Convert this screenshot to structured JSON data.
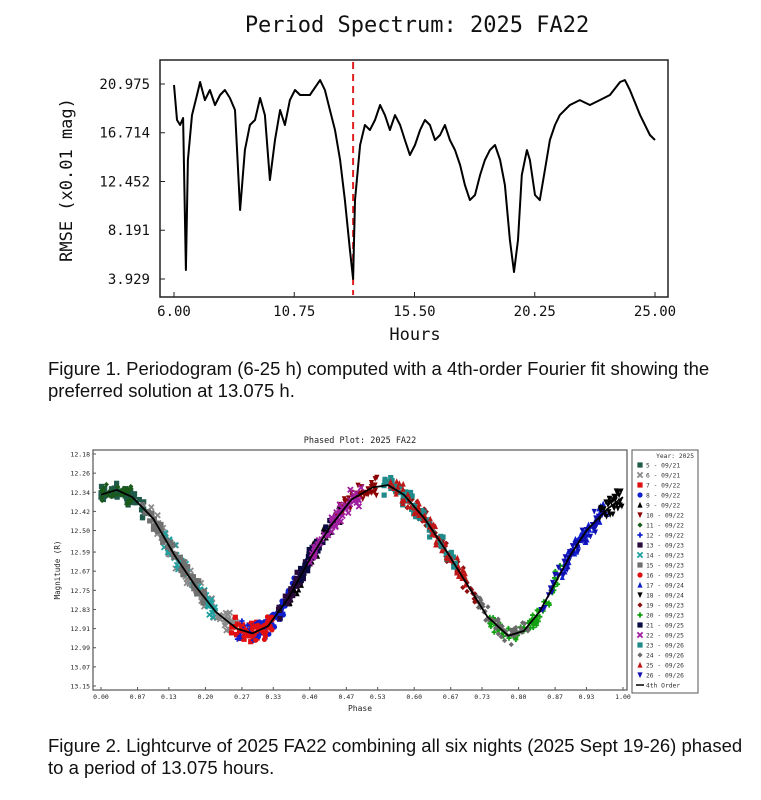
{
  "chart_data": [
    {
      "type": "line",
      "title": "Period Spectrum: 2025 FA22",
      "xlabel": "Hours",
      "ylabel": "RMSE (x0.01 mag)",
      "xlim": [
        6.0,
        25.0
      ],
      "ylim": [
        3.929,
        20.975
      ],
      "xticks": [
        "6.00",
        "10.75",
        "15.50",
        "20.25",
        "25.00"
      ],
      "yticks": [
        "20.975",
        "16.714",
        "12.452",
        "8.191",
        "3.929"
      ],
      "marker_period": 13.075,
      "marker_color": "#e02020",
      "line_color": "#000000",
      "series": [
        {
          "name": "RMSE",
          "points": [
            [
              6.0,
              20.89
            ],
            [
              6.12,
              17.83
            ],
            [
              6.24,
              17.39
            ],
            [
              6.36,
              18.0
            ],
            [
              6.47,
              4.72
            ],
            [
              6.55,
              14.33
            ],
            [
              6.71,
              18.26
            ],
            [
              6.91,
              20.01
            ],
            [
              7.03,
              21.15
            ],
            [
              7.22,
              19.57
            ],
            [
              7.42,
              20.45
            ],
            [
              7.62,
              19.14
            ],
            [
              7.82,
              20.01
            ],
            [
              8.01,
              20.45
            ],
            [
              8.21,
              19.75
            ],
            [
              8.41,
              18.7
            ],
            [
              8.61,
              9.96
            ],
            [
              8.8,
              15.2
            ],
            [
              9.0,
              17.39
            ],
            [
              9.2,
              17.83
            ],
            [
              9.4,
              19.75
            ],
            [
              9.59,
              18.26
            ],
            [
              9.79,
              12.58
            ],
            [
              9.99,
              16.08
            ],
            [
              10.19,
              18.7
            ],
            [
              10.38,
              17.39
            ],
            [
              10.58,
              19.57
            ],
            [
              10.78,
              20.45
            ],
            [
              10.98,
              20.01
            ],
            [
              11.37,
              20.01
            ],
            [
              11.77,
              21.32
            ],
            [
              11.96,
              20.45
            ],
            [
              12.16,
              18.7
            ],
            [
              12.36,
              16.95
            ],
            [
              12.56,
              14.33
            ],
            [
              12.75,
              10.83
            ],
            [
              12.95,
              6.5
            ],
            [
              13.075,
              3.93
            ],
            [
              13.15,
              10.83
            ],
            [
              13.35,
              15.64
            ],
            [
              13.54,
              17.39
            ],
            [
              13.74,
              16.95
            ],
            [
              13.94,
              17.83
            ],
            [
              14.14,
              19.14
            ],
            [
              14.33,
              18.26
            ],
            [
              14.53,
              16.95
            ],
            [
              14.73,
              18.26
            ],
            [
              14.93,
              17.39
            ],
            [
              15.12,
              16.08
            ],
            [
              15.32,
              14.77
            ],
            [
              15.52,
              15.64
            ],
            [
              15.72,
              16.95
            ],
            [
              15.91,
              17.83
            ],
            [
              16.11,
              17.39
            ],
            [
              16.31,
              16.08
            ],
            [
              16.51,
              16.52
            ],
            [
              16.7,
              17.39
            ],
            [
              16.9,
              16.08
            ],
            [
              17.1,
              15.2
            ],
            [
              17.3,
              13.89
            ],
            [
              17.49,
              12.15
            ],
            [
              17.69,
              10.83
            ],
            [
              17.89,
              11.27
            ],
            [
              18.09,
              13.02
            ],
            [
              18.28,
              14.33
            ],
            [
              18.48,
              15.2
            ],
            [
              18.68,
              15.64
            ],
            [
              18.88,
              14.33
            ],
            [
              19.07,
              12.15
            ],
            [
              19.27,
              7.34
            ],
            [
              19.43,
              4.54
            ],
            [
              19.59,
              7.34
            ],
            [
              19.74,
              13.02
            ],
            [
              19.94,
              15.2
            ],
            [
              20.06,
              14.33
            ],
            [
              20.26,
              11.27
            ],
            [
              20.45,
              10.83
            ],
            [
              20.65,
              13.46
            ],
            [
              20.85,
              16.08
            ],
            [
              21.05,
              17.39
            ],
            [
              21.24,
              18.26
            ],
            [
              21.64,
              19.14
            ],
            [
              22.03,
              19.57
            ],
            [
              22.43,
              19.14
            ],
            [
              22.82,
              19.57
            ],
            [
              23.22,
              20.01
            ],
            [
              23.62,
              21.15
            ],
            [
              23.81,
              21.32
            ],
            [
              24.01,
              20.45
            ],
            [
              24.41,
              18.26
            ],
            [
              24.8,
              16.52
            ],
            [
              25.0,
              16.08
            ]
          ]
        }
      ]
    },
    {
      "type": "scatter",
      "title": "Phased Plot: 2025 FA22",
      "xlabel": "Phase",
      "ylabel": "Magnitude (R)",
      "xlim": [
        0.0,
        1.0
      ],
      "ylim": [
        12.18,
        13.15
      ],
      "y_inverted": true,
      "xticks": [
        "0.00",
        "0.07",
        "0.13",
        "0.20",
        "0.27",
        "0.33",
        "0.40",
        "0.47",
        "0.53",
        "0.60",
        "0.67",
        "0.73",
        "0.80",
        "0.87",
        "0.93",
        "1.00"
      ],
      "yticks": [
        "12.18",
        "12.26",
        "12.34",
        "12.42",
        "12.50",
        "12.59",
        "12.67",
        "12.75",
        "12.83",
        "12.91",
        "12.99",
        "13.07",
        "13.15"
      ],
      "legend_title": "Year: 2025",
      "legend_position": "right",
      "fit": {
        "name": "4th Order",
        "color": "#000000",
        "points": [
          [
            0.0,
            12.35
          ],
          [
            0.03,
            12.33
          ],
          [
            0.06,
            12.36
          ],
          [
            0.1,
            12.45
          ],
          [
            0.14,
            12.6
          ],
          [
            0.18,
            12.73
          ],
          [
            0.22,
            12.84
          ],
          [
            0.26,
            12.91
          ],
          [
            0.29,
            12.93
          ],
          [
            0.32,
            12.9
          ],
          [
            0.36,
            12.78
          ],
          [
            0.4,
            12.62
          ],
          [
            0.44,
            12.48
          ],
          [
            0.48,
            12.37
          ],
          [
            0.52,
            12.32
          ],
          [
            0.55,
            12.31
          ],
          [
            0.58,
            12.35
          ],
          [
            0.62,
            12.45
          ],
          [
            0.66,
            12.58
          ],
          [
            0.7,
            12.72
          ],
          [
            0.74,
            12.86
          ],
          [
            0.78,
            12.94
          ],
          [
            0.81,
            12.92
          ],
          [
            0.84,
            12.84
          ],
          [
            0.87,
            12.72
          ],
          [
            0.9,
            12.6
          ],
          [
            0.93,
            12.5
          ],
          [
            0.97,
            12.41
          ],
          [
            1.0,
            12.36
          ]
        ]
      },
      "series": [
        {
          "label": "5 - 09/21",
          "color": "#1f5a4a",
          "marker": "square",
          "phase_range": [
            0.0,
            0.09
          ]
        },
        {
          "label": "6 - 09/21",
          "color": "#8a8a8a",
          "marker": "x",
          "phase_range": [
            0.09,
            0.26
          ]
        },
        {
          "label": "7 - 09/22",
          "color": "#e01010",
          "marker": "square",
          "phase_range": [
            0.25,
            0.31
          ]
        },
        {
          "label": "8 - 09/22",
          "color": "#1020d0",
          "marker": "circle",
          "phase_range": [
            0.3,
            0.37
          ]
        },
        {
          "label": "9 - 09/22",
          "color": "#000000",
          "marker": "triangle",
          "phase_range": [
            0.36,
            0.46
          ]
        },
        {
          "label": "10 - 09/22",
          "color": "#8b0000",
          "marker": "triangle-down",
          "phase_range": [
            0.45,
            0.53
          ]
        },
        {
          "label": "11 - 09/22",
          "color": "#1a5a1a",
          "marker": "diamond",
          "phase_range": [
            0.0,
            0.06
          ]
        },
        {
          "label": "12 - 09/22",
          "color": "#1020d0",
          "marker": "plus",
          "phase_range": [
            0.26,
            0.36
          ]
        },
        {
          "label": "13 - 09/23",
          "color": "#2a0a3a",
          "marker": "square",
          "phase_range": [
            0.34,
            0.4
          ]
        },
        {
          "label": "14 - 09/23",
          "color": "#20a0a0",
          "marker": "x",
          "phase_range": [
            0.12,
            0.22
          ]
        },
        {
          "label": "15 - 09/23",
          "color": "#707070",
          "marker": "square",
          "phase_range": [
            0.08,
            0.2
          ]
        },
        {
          "label": "16 - 09/23",
          "color": "#e01010",
          "marker": "circle",
          "phase_range": [
            0.27,
            0.33
          ]
        },
        {
          "label": "17 - 09/24",
          "color": "#1020d0",
          "marker": "triangle",
          "phase_range": [
            0.88,
            0.97
          ]
        },
        {
          "label": "18 - 09/24",
          "color": "#000000",
          "marker": "triangle-down",
          "phase_range": [
            0.95,
            1.0
          ]
        },
        {
          "label": "19 - 09/23",
          "color": "#8b1010",
          "marker": "diamond",
          "phase_range": [
            0.58,
            0.72
          ]
        },
        {
          "label": "20 - 09/23",
          "color": "#10a010",
          "marker": "plus",
          "phase_range": [
            0.74,
            0.88
          ]
        },
        {
          "label": "21 - 09/25",
          "color": "#0a0a40",
          "marker": "square",
          "phase_range": [
            0.38,
            0.44
          ]
        },
        {
          "label": "22 - 09/25",
          "color": "#a020a0",
          "marker": "x",
          "phase_range": [
            0.4,
            0.5
          ]
        },
        {
          "label": "23 - 09/26",
          "color": "#208a8a",
          "marker": "square",
          "phase_range": [
            0.54,
            0.68
          ]
        },
        {
          "label": "24 - 09/26",
          "color": "#6a6a6a",
          "marker": "diamond",
          "phase_range": [
            0.72,
            0.82
          ]
        },
        {
          "label": "25 - 09/26",
          "color": "#c01818",
          "marker": "triangle",
          "phase_range": [
            0.55,
            0.7
          ]
        },
        {
          "label": "26 - 09/26",
          "color": "#1010b0",
          "marker": "triangle-down",
          "phase_range": [
            0.84,
            0.96
          ]
        }
      ]
    }
  ],
  "captions": {
    "fig1": "Figure 1. Periodogram (6-25 h) computed with a 4th-order Fourier fit showing the preferred solution at 13.075 h.",
    "fig2": "Figure 2. Lightcurve of 2025 FA22 combining all six nights (2025 Sept 19-26) phased to a period of 13.075 hours."
  }
}
